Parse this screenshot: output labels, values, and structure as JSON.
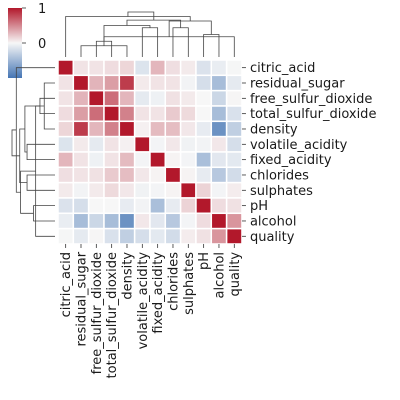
{
  "chart_data": {
    "type": "heatmap",
    "variant": "clustermap",
    "labels": [
      "citric_acid",
      "residual_sugar",
      "free_sulfur_dioxide",
      "total_sulfur_dioxide",
      "density",
      "volatile_acidity",
      "fixed_acidity",
      "chlorides",
      "sulphates",
      "pH",
      "alcohol",
      "quality"
    ],
    "matrix": [
      [
        1.0,
        0.09,
        0.09,
        0.12,
        0.15,
        -0.15,
        0.29,
        0.11,
        0.06,
        -0.16,
        -0.08,
        -0.01
      ],
      [
        0.09,
        1.0,
        0.3,
        0.4,
        0.84,
        0.06,
        0.09,
        0.09,
        -0.03,
        -0.19,
        -0.45,
        -0.1
      ],
      [
        0.09,
        0.3,
        1.0,
        0.62,
        0.29,
        -0.1,
        -0.05,
        0.1,
        0.06,
        -0.0,
        -0.25,
        0.01
      ],
      [
        0.12,
        0.4,
        0.62,
        1.0,
        0.53,
        0.09,
        0.09,
        0.2,
        0.13,
        0.0,
        -0.45,
        -0.17
      ],
      [
        0.15,
        0.84,
        0.29,
        0.53,
        1.0,
        0.03,
        0.27,
        0.26,
        0.07,
        -0.09,
        -0.78,
        -0.31
      ],
      [
        -0.15,
        0.06,
        -0.1,
        0.09,
        0.03,
        1.0,
        -0.02,
        0.07,
        -0.04,
        -0.03,
        0.07,
        -0.19
      ],
      [
        0.29,
        0.09,
        -0.05,
        0.09,
        0.27,
        -0.02,
        1.0,
        0.02,
        -0.02,
        -0.43,
        -0.12,
        -0.11
      ],
      [
        0.11,
        0.09,
        0.1,
        0.2,
        0.26,
        0.07,
        0.02,
        1.0,
        0.02,
        -0.09,
        -0.36,
        -0.21
      ],
      [
        0.06,
        -0.03,
        0.06,
        0.13,
        0.07,
        -0.04,
        -0.02,
        0.02,
        1.0,
        0.16,
        -0.02,
        0.05
      ],
      [
        -0.16,
        -0.19,
        -0.0,
        0.0,
        -0.09,
        -0.03,
        -0.43,
        -0.09,
        0.16,
        1.0,
        0.12,
        0.1
      ],
      [
        -0.08,
        -0.45,
        -0.25,
        -0.45,
        -0.78,
        0.07,
        -0.12,
        -0.36,
        -0.02,
        0.12,
        1.0,
        0.44
      ],
      [
        -0.01,
        -0.1,
        0.01,
        -0.17,
        -0.31,
        -0.19,
        -0.11,
        -0.21,
        0.05,
        0.1,
        0.44,
        1.0
      ]
    ],
    "vmin": -1,
    "vmax": 1,
    "colormap": {
      "low": "#4575b4",
      "mid": "#f7f7f7",
      "high": "#b2182b"
    },
    "colorbar": {
      "ticks": [
        1,
        0
      ]
    },
    "title": "",
    "xlabel": "",
    "ylabel": ""
  }
}
